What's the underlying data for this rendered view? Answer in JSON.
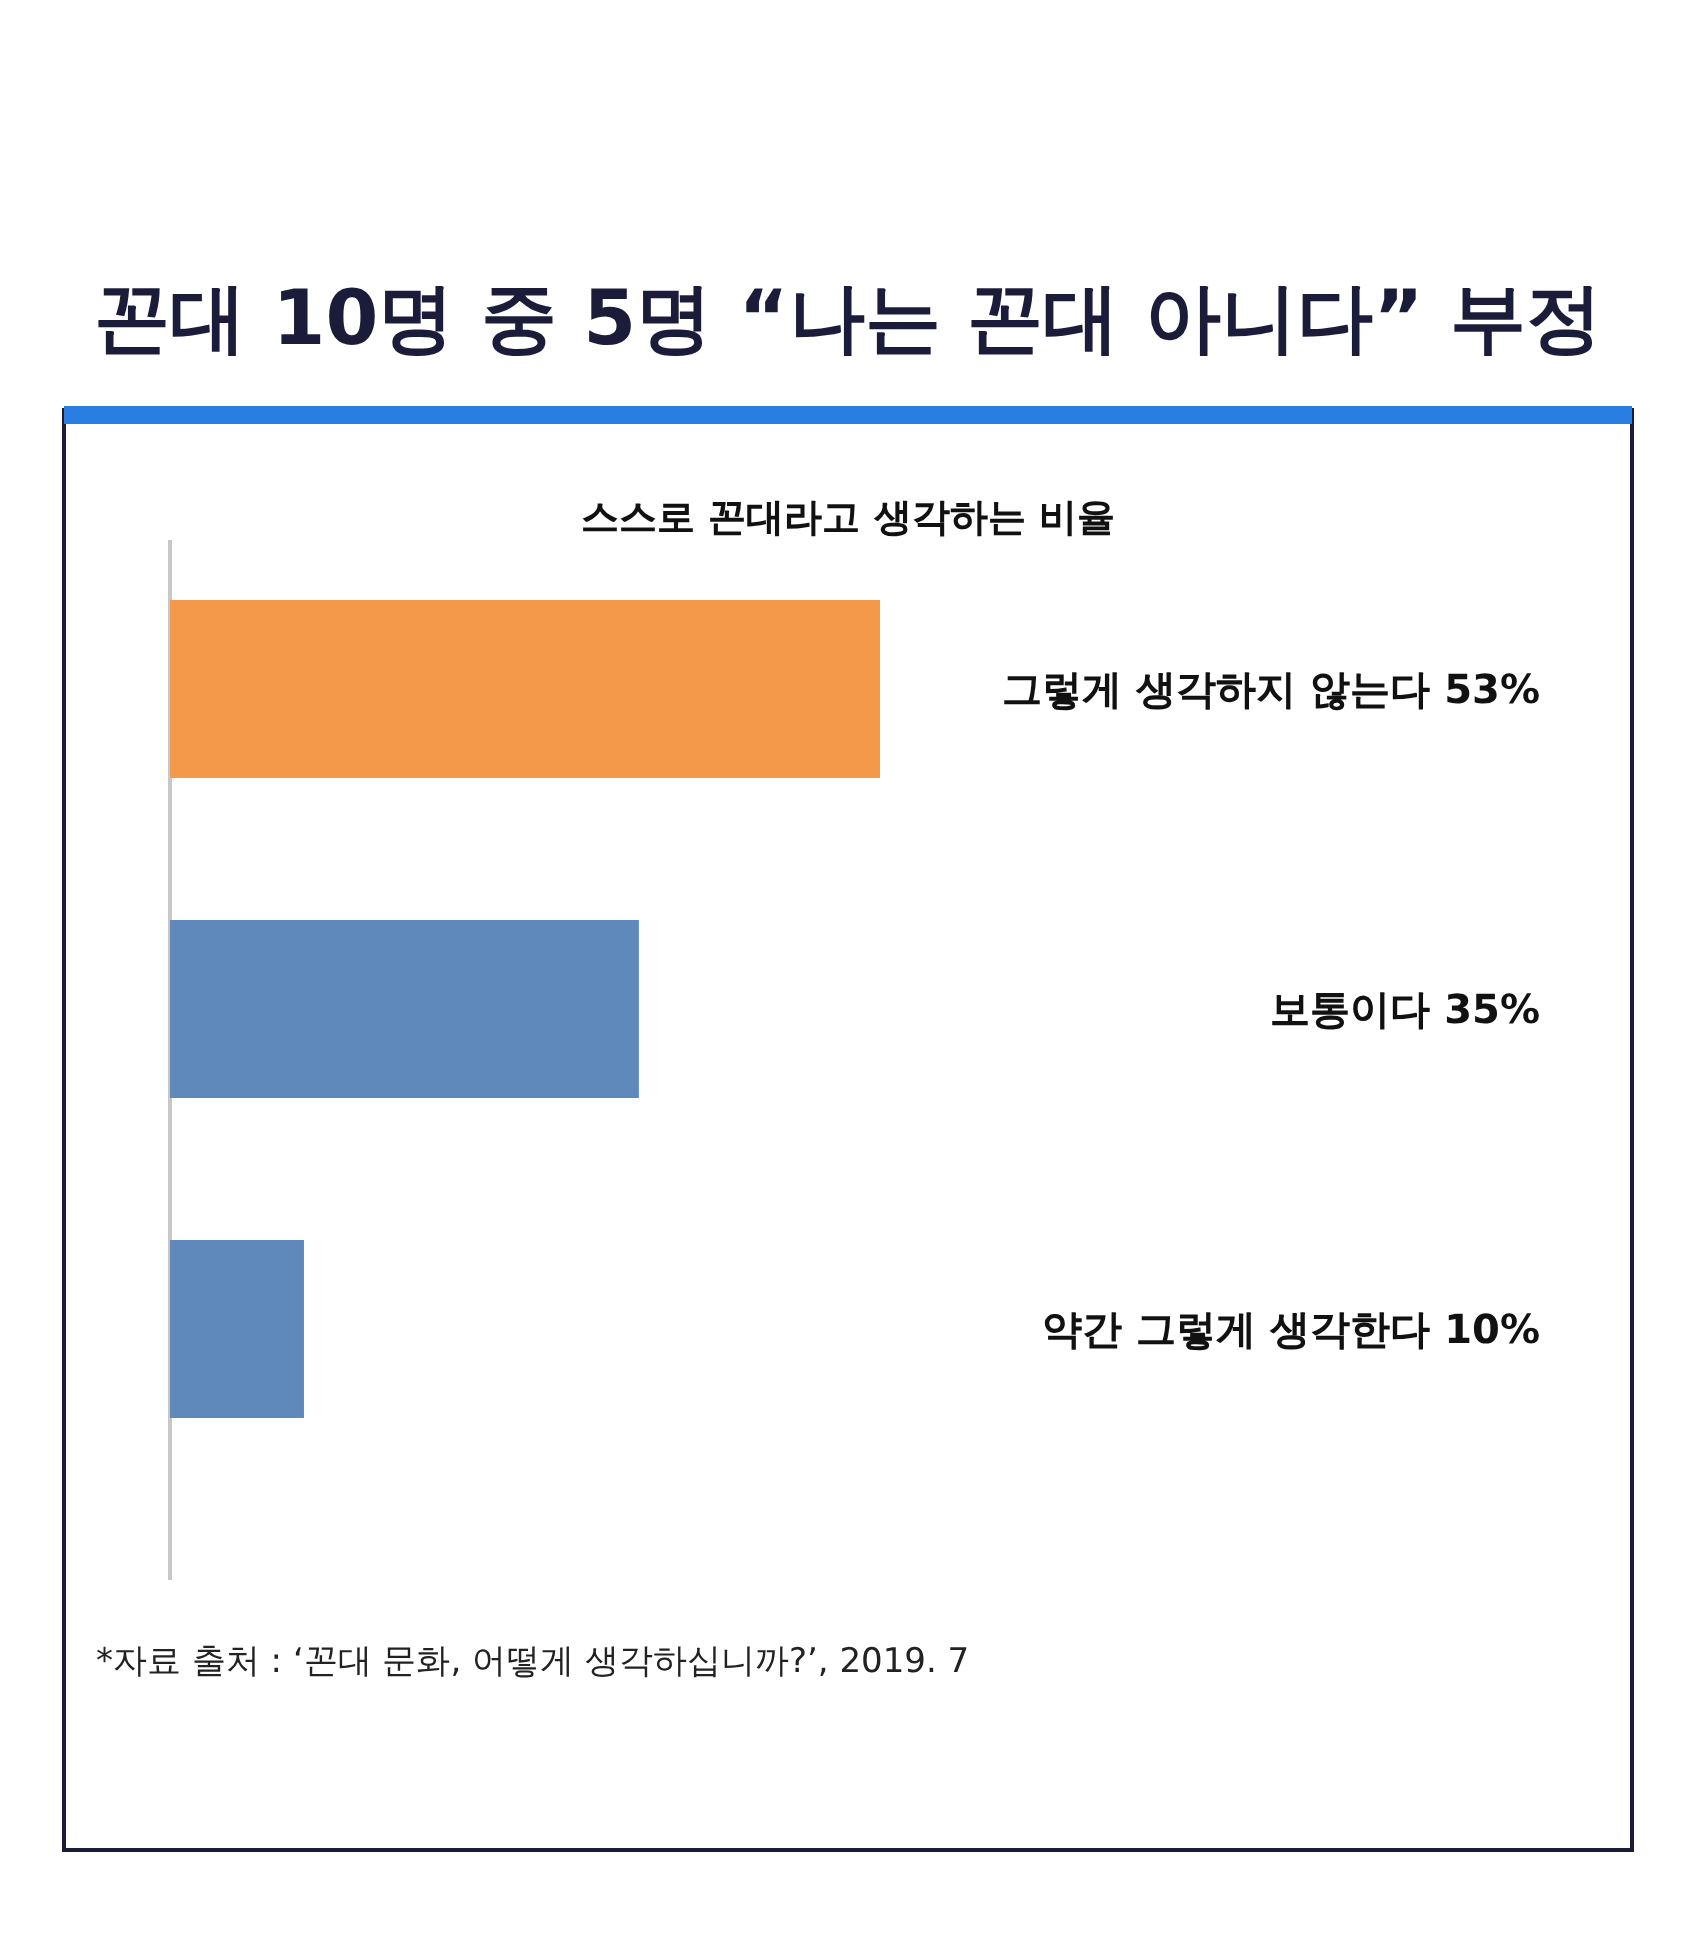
{
  "chart_data": {
    "type": "bar",
    "orientation": "horizontal",
    "title": "꼰대 10명 중 5명 “나는 꼰대 아니다” 부정",
    "subtitle": "스스로 꼰대라고 생각하는 비율",
    "categories": [
      "그렇게 생각하지 않는다",
      "보통이다",
      "약간 그렇게 생각한다"
    ],
    "values": [
      53,
      35,
      10
    ],
    "value_labels": [
      "53%",
      "35%",
      "10%"
    ],
    "colors": [
      "#f4994a",
      "#5f89bb",
      "#5f89bb"
    ],
    "annotations": [
      "*자료 출처 : ‘꼰대 문화, 어떻게 생각하십니까?’, 2019. 7"
    ]
  }
}
